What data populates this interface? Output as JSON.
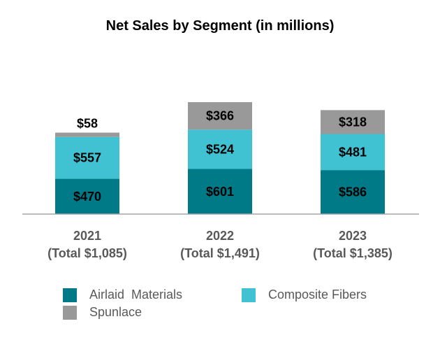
{
  "chart_data": {
    "type": "stacked-bar",
    "title": "Net Sales by Segment (in millions)",
    "categories": [
      "2021",
      "2022",
      "2023"
    ],
    "category_totals": [
      "(Total $1,085)",
      "(Total $1,491)",
      "(Total $1,385)"
    ],
    "series": [
      {
        "name": "Airlaid  Materials",
        "color": "#007a87",
        "values": [
          470,
          601,
          586
        ],
        "labels": [
          "$470",
          "$601",
          "$586"
        ]
      },
      {
        "name": "Composite Fibers",
        "color": "#40c2d3",
        "values": [
          557,
          524,
          481
        ],
        "labels": [
          "$557",
          "$524",
          "$481"
        ]
      },
      {
        "name": "Spunlace",
        "color": "#999999",
        "values": [
          58,
          366,
          318
        ],
        "labels": [
          "$58",
          "$366",
          "$318"
        ]
      }
    ],
    "ylim": [
      0,
      1500
    ],
    "grid": false,
    "legend_position": "bottom"
  }
}
